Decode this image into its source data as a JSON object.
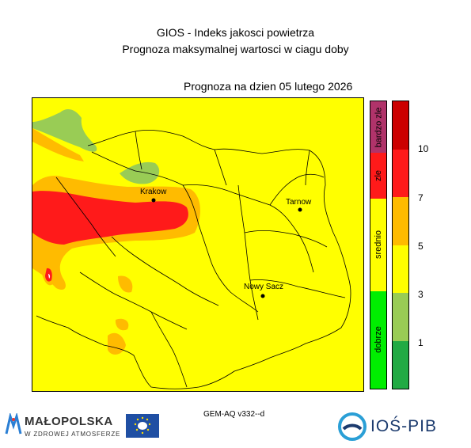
{
  "header": {
    "title_line1": "GIOS - Indeks jakosci powietrza",
    "title_line2": "Prognoza maksymalnej wartosci w ciagu doby",
    "forecast_date": "Prognoza na dzien  05 lutego 2026"
  },
  "cities": [
    {
      "name": "Krakow"
    },
    {
      "name": "Tarnow"
    },
    {
      "name": "Nowy Sacz"
    }
  ],
  "legend": {
    "categories": [
      {
        "label": "bardzo zle",
        "color": "#b0336a"
      },
      {
        "label": "zle",
        "color": "#ff1a1a"
      },
      {
        "label": "srednio",
        "color": "#ffff00"
      },
      {
        "label": "dobrze",
        "color": "#00ee00"
      }
    ],
    "scale_colors": [
      "#cc0000",
      "#ff1a1a",
      "#ffbb00",
      "#ffff00",
      "#99cc55",
      "#22aa44"
    ],
    "ticks": [
      "10",
      "7",
      "5",
      "3",
      "1"
    ]
  },
  "footer": {
    "model": "GEM-AQ v332--d",
    "malopolska_name": "MAŁOPOLSKA",
    "malopolska_sub": "W ZDROWEJ ATMOSFERZE",
    "ios_name": "IOŚ-PIB"
  },
  "colors": {
    "index_3_5": "#ffff00",
    "index_5_7": "#ffbb00",
    "index_7_10": "#ff1a1a",
    "index_1_3": "#99cc55"
  }
}
